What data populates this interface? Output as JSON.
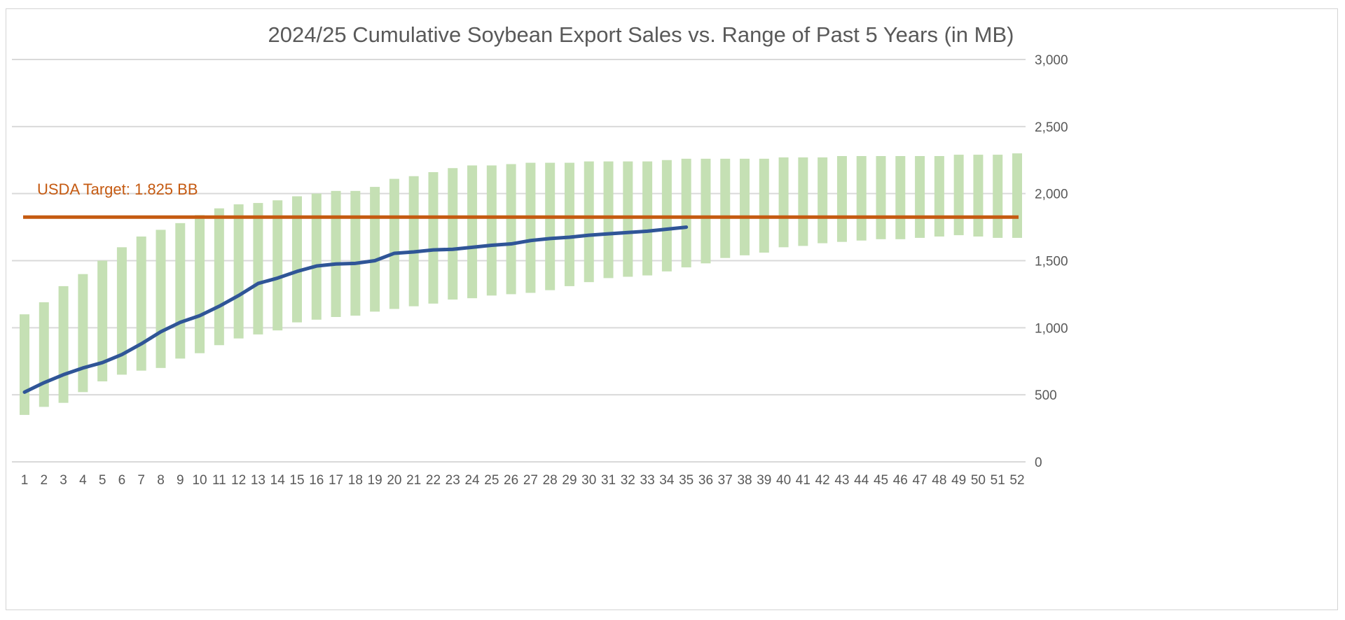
{
  "chart_data": {
    "type": "bar",
    "title": "2024/25 Cumulative Soybean Export Sales vs. Range of Past 5 Years (in MB)",
    "xlabel": "",
    "ylabel": "",
    "ylim": [
      0,
      3000
    ],
    "y_ticks": [
      0,
      500,
      1000,
      1500,
      2000,
      2500,
      3000
    ],
    "y_tick_labels": [
      "0",
      "500",
      "1,000",
      "1,500",
      "2,000",
      "2,500",
      "3,000"
    ],
    "y_axis_side": "right",
    "grid": true,
    "categories": [
      "1",
      "2",
      "3",
      "4",
      "5",
      "6",
      "7",
      "8",
      "9",
      "10",
      "11",
      "12",
      "13",
      "14",
      "15",
      "16",
      "17",
      "18",
      "19",
      "20",
      "21",
      "22",
      "23",
      "24",
      "25",
      "26",
      "27",
      "28",
      "29",
      "30",
      "31",
      "32",
      "33",
      "34",
      "35",
      "36",
      "37",
      "38",
      "39",
      "40",
      "41",
      "42",
      "43",
      "44",
      "45",
      "46",
      "47",
      "48",
      "49",
      "50",
      "51",
      "52"
    ],
    "range": {
      "color": "#c5e0b4",
      "low": [
        350,
        410,
        440,
        520,
        600,
        650,
        680,
        700,
        770,
        810,
        870,
        920,
        950,
        980,
        1040,
        1060,
        1080,
        1090,
        1120,
        1140,
        1160,
        1180,
        1210,
        1220,
        1240,
        1250,
        1260,
        1280,
        1310,
        1340,
        1370,
        1380,
        1390,
        1420,
        1450,
        1480,
        1520,
        1540,
        1560,
        1600,
        1610,
        1630,
        1640,
        1650,
        1660,
        1660,
        1670,
        1680,
        1690,
        1680,
        1670,
        1670
      ],
      "high": [
        1100,
        1190,
        1310,
        1400,
        1500,
        1600,
        1680,
        1730,
        1780,
        1840,
        1890,
        1920,
        1930,
        1950,
        1980,
        2000,
        2020,
        2020,
        2050,
        2110,
        2130,
        2160,
        2190,
        2210,
        2210,
        2220,
        2230,
        2230,
        2230,
        2240,
        2240,
        2240,
        2240,
        2250,
        2260,
        2260,
        2260,
        2260,
        2260,
        2270,
        2270,
        2270,
        2280,
        2280,
        2280,
        2280,
        2280,
        2280,
        2290,
        2290,
        2290,
        2300
      ]
    },
    "current_season": {
      "color": "#2f5597",
      "x": [
        1,
        2,
        3,
        4,
        5,
        6,
        7,
        8,
        9,
        10,
        11,
        12,
        13,
        14,
        15,
        16,
        17,
        18,
        19,
        20,
        21,
        22,
        23,
        24,
        25,
        26,
        27,
        28,
        29,
        30,
        31,
        32,
        33,
        34,
        35
      ],
      "values": [
        520,
        590,
        650,
        700,
        740,
        800,
        880,
        970,
        1040,
        1090,
        1160,
        1240,
        1330,
        1370,
        1420,
        1460,
        1475,
        1480,
        1500,
        1555,
        1565,
        1580,
        1585,
        1600,
        1615,
        1625,
        1650,
        1665,
        1675,
        1690,
        1700,
        1710,
        1720,
        1735,
        1750
      ]
    },
    "target": {
      "value": 1825,
      "color": "#c55a11",
      "label": "USDA Target: 1.825 BB"
    }
  }
}
